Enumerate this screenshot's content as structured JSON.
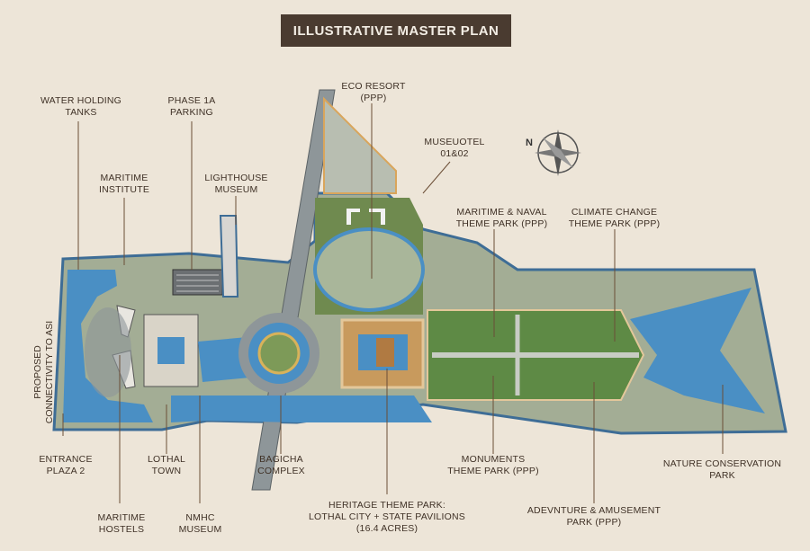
{
  "title": "ILLUSTRATIVE MASTER PLAN",
  "labels": {
    "water_holding_tanks": "WATER HOLDING\nTANKS",
    "phase_1a_parking": "PHASE 1A\nPARKING",
    "eco_resort": "ECO RESORT\n(PPP)",
    "museuotel": "MUSEUOTEL\n01&02",
    "maritime_institute": "MARITIME\nINSTITUTE",
    "lighthouse_museum": "LIGHTHOUSE\nMUSEUM",
    "maritime_naval_park": "MARITIME & NAVAL\nTHEME PARK (PPP)",
    "climate_change_park": "CLIMATE CHANGE\nTHEME PARK (PPP)",
    "proposed_connectivity": "PROPOSED\nCONNECTIVITY TO ASI",
    "entrance_plaza": "ENTRANCE\nPLAZA 2",
    "lothal_town": "LOTHAL\nTOWN",
    "bagicha_complex": "BAGICHA\nCOMPLEX",
    "monuments_park": "MONUMENTS\nTHEME PARK (PPP)",
    "nature_conservation_park": "NATURE CONSERVATION\nPARK",
    "maritime_hostels": "MARITIME\nHOSTELS",
    "nmhc_museum": "NMHC\nMUSEUM",
    "heritage_theme_park": "HERITAGE THEME PARK:\nLOTHAL CITY + STATE PAVILIONS\n(16.4 ACRES)",
    "adventure_park": "ADEVNTURE & AMUSEMENT\nPARK (PPP)"
  },
  "compass": {
    "north_letter": "N"
  },
  "colors": {
    "background": "#ede5d8",
    "title_bg": "#4a3b30",
    "water": "#4a8fc4",
    "green": "#6f8a4f",
    "land": "#a3ad95",
    "road": "#8e9699",
    "leader": "#6b4e36"
  }
}
